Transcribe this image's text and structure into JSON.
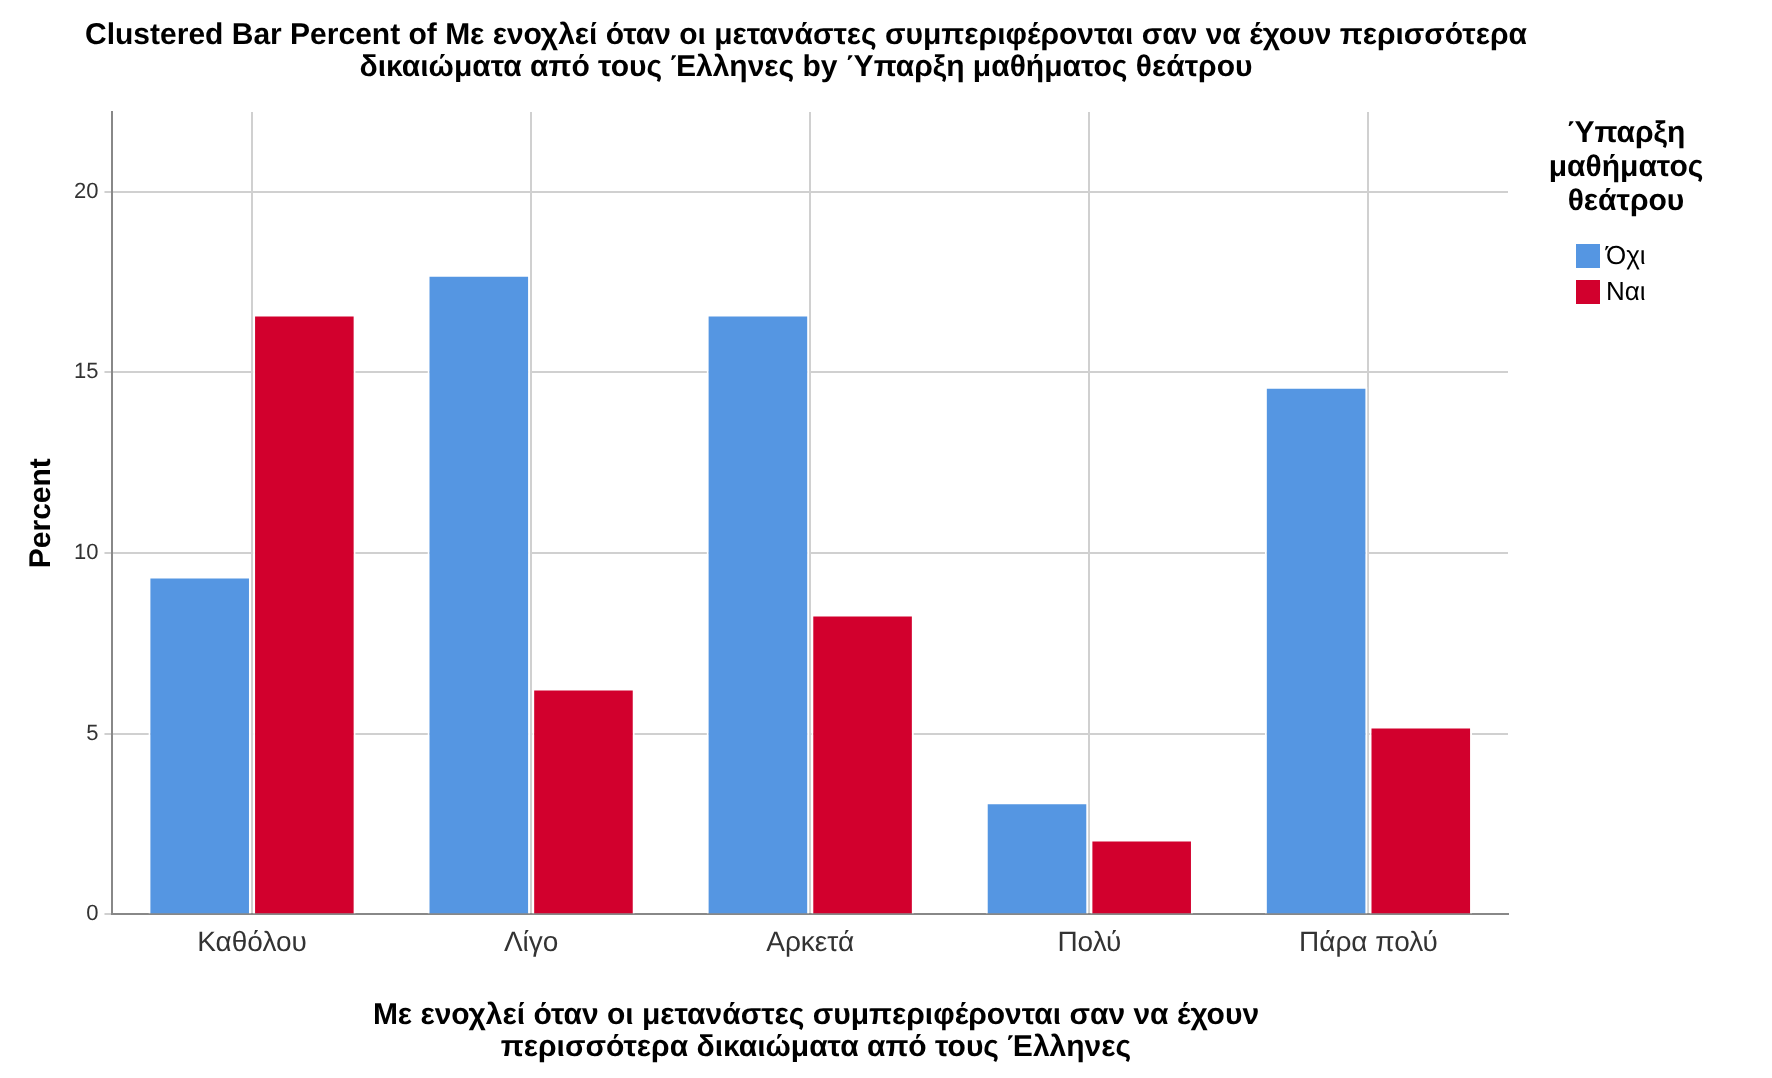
{
  "chart_data": {
    "type": "bar",
    "title": "Clustered Bar Percent of Με ενοχλεί όταν οι μετανάστες συμπεριφέρονται σαν να έχουν περισσότερα δικαιώματα από τους Έλληνες by Ύπαρξη μαθήματος θεάτρου",
    "xlabel": "Με ενοχλεί όταν οι μετανάστες συμπεριφέρονται σαν να έχουν περισσότερα δικαιώματα από τους Έλληνες",
    "ylabel": "Percent",
    "legend_title": "Ύπαρξη μαθήματος θεάτρου",
    "categories": [
      "Καθόλου",
      "Λίγο",
      "Αρκετά",
      "Πολύ",
      "Πάρα πολύ"
    ],
    "series": [
      {
        "name": "Όχι",
        "color": "#5596e2",
        "values": [
          9.35,
          17.7,
          16.6,
          3.1,
          14.6
        ]
      },
      {
        "name": "Ναι",
        "color": "#d2002d",
        "values": [
          16.6,
          6.25,
          8.3,
          2.07,
          5.2
        ]
      }
    ],
    "ylim": [
      0,
      22.2
    ],
    "yticks": [
      0,
      5,
      10,
      15,
      20
    ],
    "grid": true,
    "legend": "top right"
  }
}
